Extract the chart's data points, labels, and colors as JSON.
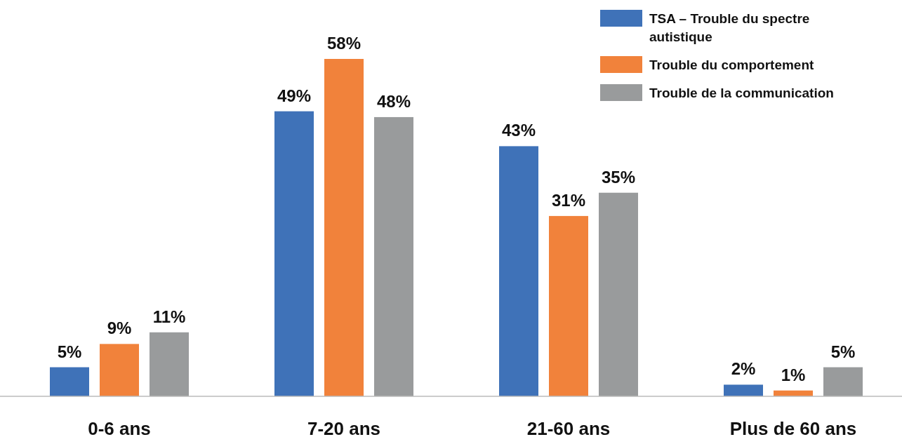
{
  "chart_data": {
    "type": "bar",
    "categories": [
      "0-6 ans",
      "7-20 ans",
      "21-60 ans",
      "Plus de 60 ans"
    ],
    "series": [
      {
        "name": "TSA – Trouble du spectre autistique",
        "color": "#3f72b8",
        "values": [
          5,
          49,
          43,
          2
        ],
        "value_labels": [
          "5%",
          "49%",
          "43%",
          "2%"
        ]
      },
      {
        "name": "Trouble du comportement",
        "color": "#f1823b",
        "values": [
          9,
          58,
          31,
          1
        ],
        "value_labels": [
          "9%",
          "58%",
          "31%",
          "1%"
        ]
      },
      {
        "name": "Trouble de la communication",
        "color": "#999b9c",
        "values": [
          11,
          48,
          35,
          5
        ],
        "value_labels": [
          "11%",
          "48%",
          "35%",
          "5%"
        ]
      }
    ],
    "legend": "top right"
  }
}
